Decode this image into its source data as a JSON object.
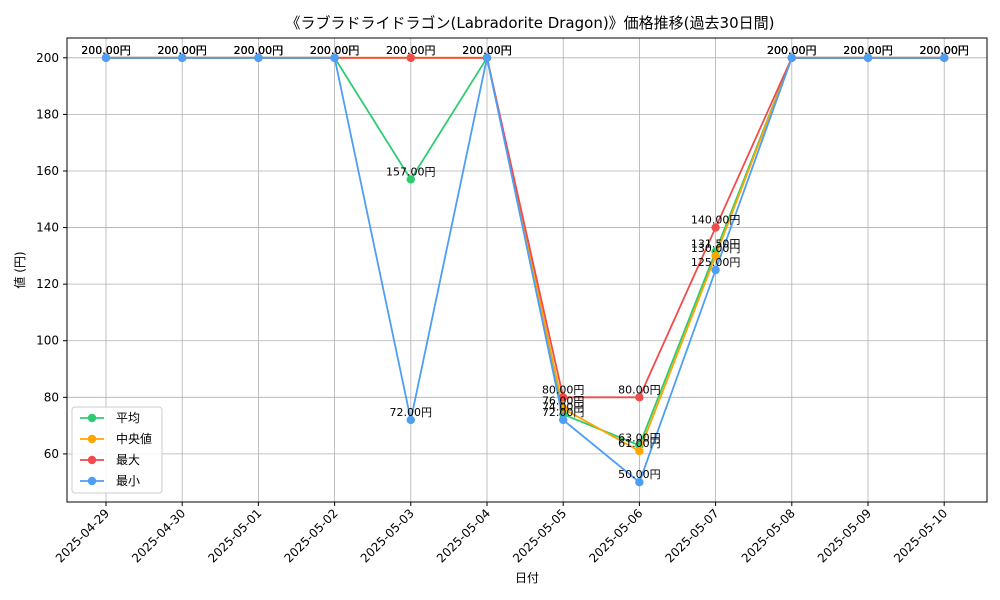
{
  "chart_data": {
    "type": "line",
    "title": "《ラブラドライドラゴン(Labradorite Dragon)》価格推移(過去30日間)",
    "xlabel": "日付",
    "ylabel": "値 (円)",
    "categories": [
      "2025-04-29",
      "2025-04-30",
      "2025-05-01",
      "2025-05-02",
      "2025-05-03",
      "2025-05-04",
      "2025-05-05",
      "2025-05-06",
      "2025-05-07",
      "2025-05-08",
      "2025-05-09",
      "2025-05-10"
    ],
    "ylim": [
      43,
      207
    ],
    "yticks": [
      60,
      80,
      100,
      120,
      140,
      160,
      180,
      200
    ],
    "grid": true,
    "legend_position": "lower-left",
    "value_suffix": "円",
    "series": [
      {
        "name": "平均",
        "color": "#2ecc71",
        "values": [
          200,
          200,
          200,
          200,
          157,
          200,
          74,
          63,
          131.5,
          200,
          200,
          200
        ]
      },
      {
        "name": "中央値",
        "color": "#ffa500",
        "values": [
          200,
          200,
          200,
          200,
          200,
          200,
          76,
          61,
          130,
          200,
          200,
          200
        ]
      },
      {
        "name": "最大",
        "color": "#f04c4c",
        "values": [
          200,
          200,
          200,
          200,
          200,
          200,
          80,
          80,
          140,
          200,
          200,
          200
        ]
      },
      {
        "name": "最小",
        "color": "#4d9ef5",
        "values": [
          200,
          200,
          200,
          200,
          72,
          200,
          72,
          50,
          125,
          200,
          200,
          200
        ]
      }
    ]
  }
}
